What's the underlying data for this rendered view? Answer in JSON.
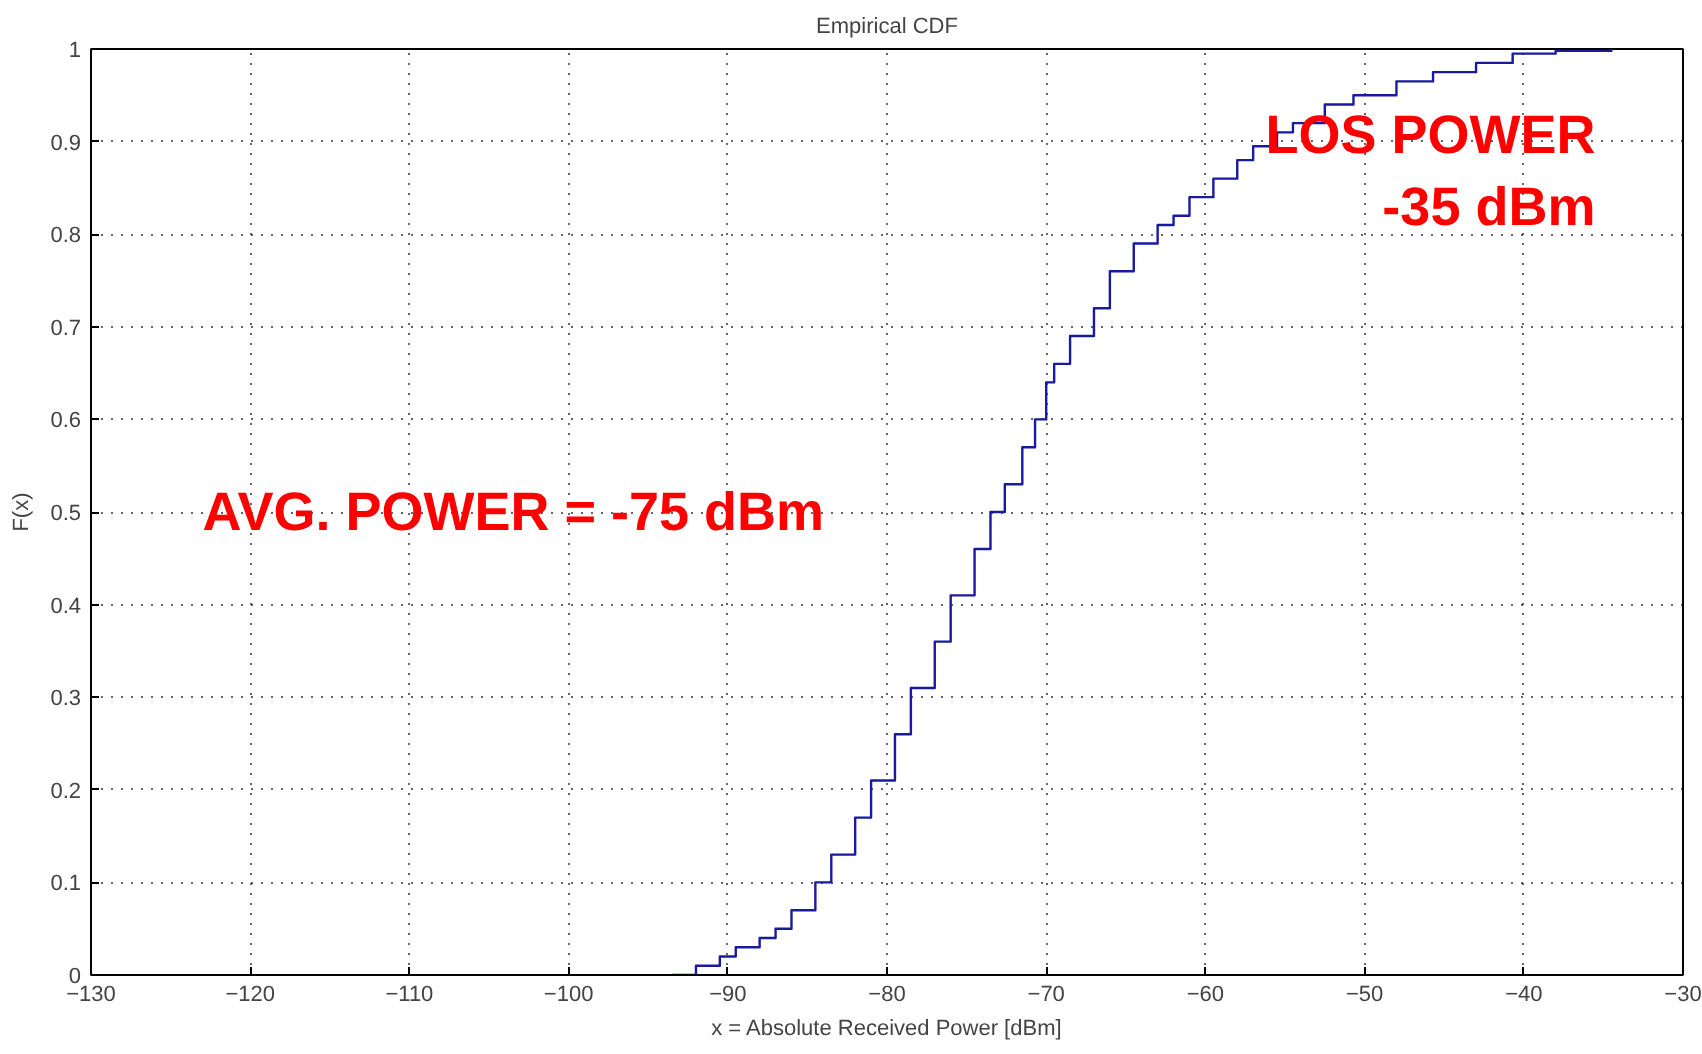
{
  "chart_data": {
    "type": "step",
    "title": "Empirical CDF",
    "xlabel": "x = Absolute Received Power [dBm]",
    "ylabel": "F(x)",
    "series": [
      {
        "color": "#1a1aa0",
        "x": [
          -93.5,
          -92,
          -90.5,
          -89.5,
          -88,
          -87,
          -86,
          -84.5,
          -83.5,
          -82,
          -81,
          -79.5,
          -78.5,
          -77,
          -76,
          -74.5,
          -73.5,
          -72.6,
          -71.5,
          -70.7,
          -70,
          -69.5,
          -68.5,
          -67,
          -66,
          -64.5,
          -63,
          -62,
          -61,
          -59.5,
          -58,
          -57,
          -55.5,
          -54.5,
          -52.5,
          -50.7,
          -48,
          -45.7,
          -43,
          -40.7,
          -38,
          -34.5
        ],
        "values": [
          0,
          0.01,
          0.02,
          0.03,
          0.04,
          0.05,
          0.07,
          0.1,
          0.13,
          0.17,
          0.21,
          0.26,
          0.31,
          0.36,
          0.41,
          0.46,
          0.5,
          0.53,
          0.57,
          0.6,
          0.64,
          0.66,
          0.69,
          0.72,
          0.76,
          0.79,
          0.81,
          0.82,
          0.84,
          0.86,
          0.88,
          0.895,
          0.91,
          0.92,
          0.94,
          0.95,
          0.965,
          0.975,
          0.985,
          0.995,
          0.998,
          1
        ]
      }
    ],
    "xlim": [
      -130,
      -30
    ],
    "ylim": [
      0,
      1
    ],
    "xticks": [
      -130,
      -120,
      -110,
      -100,
      -90,
      -80,
      -70,
      -60,
      -50,
      -40,
      -30
    ],
    "yticks": [
      0,
      0.1,
      0.2,
      0.3,
      0.4,
      0.5,
      0.6,
      0.7,
      0.8,
      0.9,
      1
    ],
    "grid": true,
    "line_style": "solid",
    "marker": "none",
    "annotations": [
      "AVG. POWER = -75 dBm",
      "LOS POWER\n-35 dBm"
    ]
  }
}
